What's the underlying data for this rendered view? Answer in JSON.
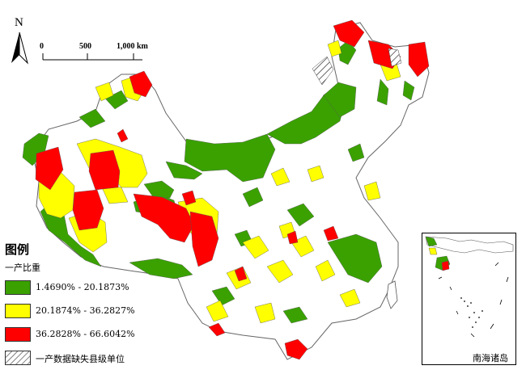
{
  "map": {
    "north_label": "N",
    "scale": {
      "ticks": [
        "0",
        "500",
        "1,000 km"
      ]
    },
    "colors": {
      "class1": "#3aa100",
      "class2": "#ffff00",
      "class3": "#ff0000",
      "no_data_pattern": "hatched",
      "unshaded": "#ffffff",
      "boundary": "#555555"
    }
  },
  "legend": {
    "title": "图例",
    "subtitle": "一产比重",
    "items": [
      {
        "label": "1.4690% - 20.1873%",
        "color": "#3aa100"
      },
      {
        "label": "20.1874% - 36.2827%",
        "color": "#ffff00"
      },
      {
        "label": "36.2828% - 66.6042%",
        "color": "#ff0000"
      },
      {
        "label": "一产数据缺失县级单位",
        "pattern": "hatched"
      }
    ]
  },
  "inset": {
    "label": "南海诸岛"
  }
}
